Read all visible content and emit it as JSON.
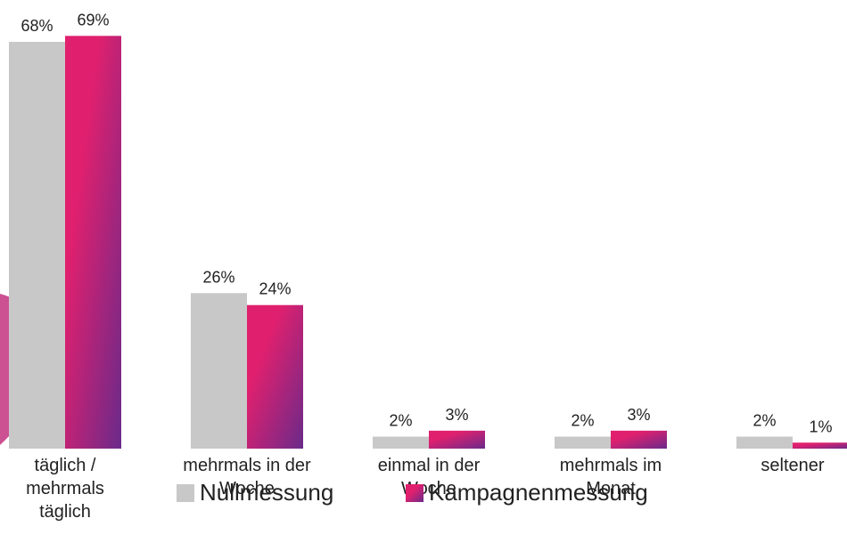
{
  "chart_data": {
    "type": "bar",
    "categories": [
      "täglich /\nmehrmals\ntäglich",
      "mehrmals in der\nWoche",
      "einmal in der\nWoche",
      "mehrmals im\nMonat",
      "seltener"
    ],
    "series": [
      {
        "name": "Nullmessung",
        "color": "#c8c8c8",
        "values": [
          68,
          26,
          2,
          2,
          2
        ],
        "value_labels": [
          "68%",
          "26%",
          "2%",
          "2%",
          "2%"
        ]
      },
      {
        "name": "Kampagnenmessung",
        "color": "#e0206e",
        "values": [
          69,
          24,
          3,
          3,
          1
        ],
        "value_labels": [
          "69%",
          "24%",
          "3%",
          "3%",
          "1%"
        ]
      }
    ]
  }
}
